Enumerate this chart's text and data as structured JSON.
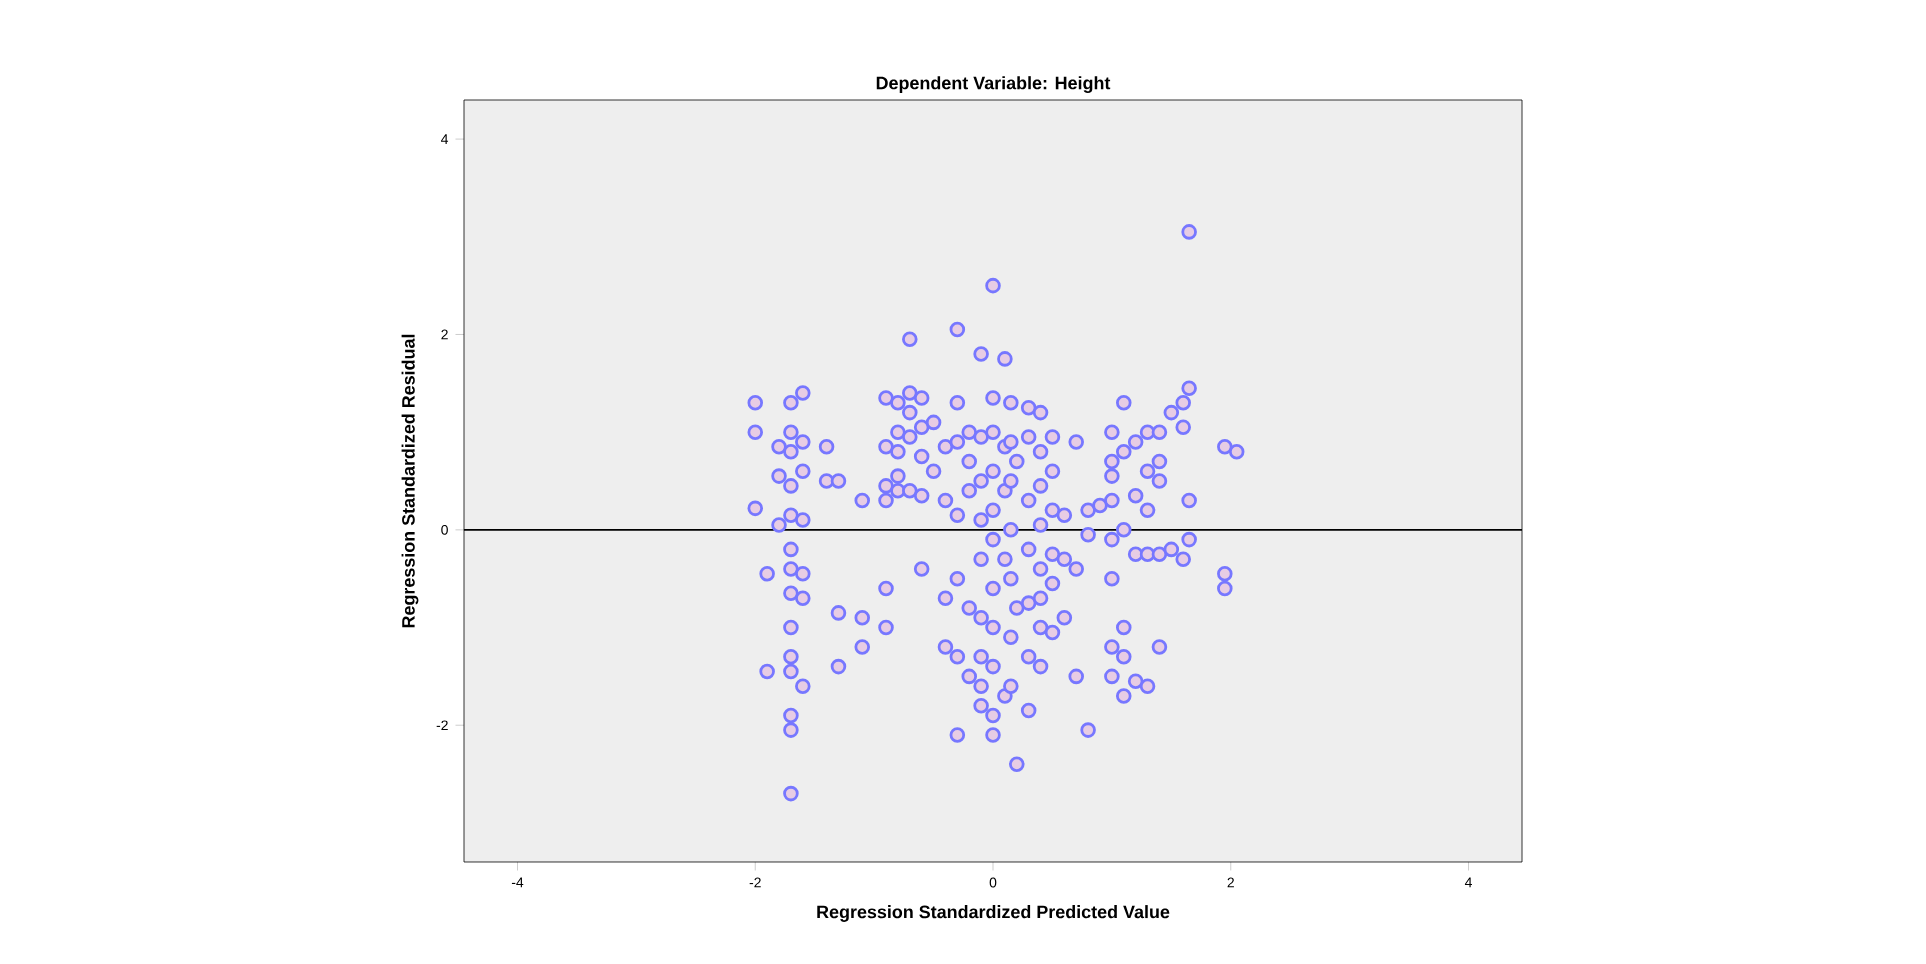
{
  "chart_data": {
    "type": "scatter",
    "title": "Dependent Variable: Height",
    "xlabel": "Regression Standardized Predicted Value",
    "ylabel": "Regression Standardized Residual",
    "xlim": [
      -4.45,
      4.45
    ],
    "ylim": [
      -3.4,
      4.4
    ],
    "xticks": [
      -4,
      -2,
      0,
      2,
      4
    ],
    "yticks": [
      -2,
      0,
      2,
      4
    ],
    "marker": "circle",
    "color": "#7777ff",
    "ref_lines": [
      {
        "axis": "y",
        "value": 0,
        "color": "#000000"
      }
    ],
    "x": [
      -2.0,
      -2.0,
      -2.0,
      -1.9,
      -1.9,
      -1.8,
      -1.8,
      -1.8,
      -1.7,
      -1.7,
      -1.7,
      -1.7,
      -1.7,
      -1.7,
      -1.7,
      -1.7,
      -1.7,
      -1.7,
      -1.7,
      -1.7,
      -1.7,
      -1.7,
      -1.6,
      -1.6,
      -1.6,
      -1.6,
      -1.6,
      -1.6,
      -1.6,
      -1.4,
      -1.4,
      -1.3,
      -1.3,
      -1.3,
      -1.1,
      -1.1,
      -1.1,
      -0.9,
      -0.9,
      -0.9,
      -0.9,
      -0.9,
      -0.9,
      -0.8,
      -0.8,
      -0.8,
      -0.8,
      -0.8,
      -0.7,
      -0.7,
      -0.7,
      -0.7,
      -0.7,
      -0.6,
      -0.6,
      -0.6,
      -0.6,
      -0.6,
      -0.5,
      -0.5,
      -0.4,
      -0.4,
      -0.4,
      -0.4,
      -0.3,
      -0.3,
      -0.3,
      -0.3,
      -0.3,
      -0.3,
      -0.3,
      -0.2,
      -0.2,
      -0.2,
      -0.2,
      -0.2,
      -0.1,
      -0.1,
      -0.1,
      -0.1,
      -0.1,
      -0.1,
      -0.1,
      -0.1,
      -0.1,
      0.0,
      0.0,
      0.0,
      0.0,
      0.0,
      0.0,
      0.0,
      0.0,
      0.0,
      0.0,
      0.0,
      0.1,
      0.1,
      0.1,
      0.1,
      0.1,
      0.15,
      0.15,
      0.15,
      0.15,
      0.15,
      0.15,
      0.15,
      0.2,
      0.2,
      0.2,
      0.3,
      0.3,
      0.3,
      0.3,
      0.3,
      0.3,
      0.3,
      0.4,
      0.4,
      0.4,
      0.4,
      0.4,
      0.4,
      0.4,
      0.4,
      0.5,
      0.5,
      0.5,
      0.5,
      0.5,
      0.5,
      0.6,
      0.6,
      0.6,
      0.7,
      0.7,
      0.7,
      0.8,
      0.8,
      0.8,
      0.9,
      1.0,
      1.0,
      1.0,
      1.0,
      1.0,
      1.0,
      1.0,
      1.0,
      1.1,
      1.1,
      1.1,
      1.1,
      1.1,
      1.1,
      1.2,
      1.2,
      1.2,
      1.2,
      1.3,
      1.3,
      1.3,
      1.3,
      1.3,
      1.4,
      1.4,
      1.4,
      1.4,
      1.4,
      1.5,
      1.5,
      1.6,
      1.6,
      1.6,
      1.65,
      1.65,
      1.65,
      1.65,
      1.95,
      1.95,
      1.95,
      2.05
    ],
    "values": [
      1.3,
      1.0,
      0.22,
      -0.45,
      -1.45,
      0.85,
      0.55,
      0.05,
      1.3,
      1.0,
      0.8,
      0.45,
      0.15,
      -0.2,
      -0.4,
      -0.65,
      -1.0,
      -1.3,
      -1.45,
      -1.9,
      -2.05,
      -2.7,
      1.4,
      0.9,
      0.6,
      0.1,
      -0.45,
      -0.7,
      -1.6,
      0.85,
      0.5,
      0.5,
      -0.85,
      -1.4,
      0.3,
      -0.9,
      -1.2,
      1.35,
      0.85,
      0.45,
      0.3,
      -0.6,
      -1.0,
      1.3,
      1.0,
      0.8,
      0.55,
      0.4,
      1.95,
      1.4,
      1.2,
      0.95,
      0.4,
      1.35,
      1.05,
      0.75,
      0.35,
      -0.4,
      1.1,
      0.6,
      0.85,
      0.3,
      -0.7,
      -1.2,
      2.05,
      1.3,
      0.9,
      0.15,
      -0.5,
      -1.3,
      -2.1,
      1.0,
      0.7,
      0.4,
      -0.8,
      -1.5,
      1.8,
      0.95,
      0.5,
      0.1,
      -0.3,
      -0.9,
      -1.3,
      -1.6,
      -1.8,
      2.5,
      1.35,
      1.0,
      0.6,
      0.2,
      -0.1,
      -0.6,
      -1.0,
      -1.4,
      -1.9,
      -2.1,
      1.75,
      0.85,
      0.4,
      -0.3,
      -1.7,
      1.3,
      0.9,
      0.5,
      0.0,
      -0.5,
      -1.1,
      -1.6,
      -2.4,
      0.7,
      -0.8,
      1.25,
      0.95,
      0.3,
      -0.2,
      -0.75,
      -1.3,
      -1.85,
      1.2,
      0.8,
      0.45,
      0.05,
      -0.4,
      -0.7,
      -1.0,
      -1.4,
      0.95,
      0.6,
      0.2,
      -0.25,
      -0.55,
      -1.05,
      0.15,
      -0.3,
      -0.9,
      0.9,
      -0.4,
      -1.5,
      0.2,
      -0.05,
      -2.05,
      0.25,
      1.0,
      0.7,
      0.55,
      0.3,
      -0.1,
      -0.5,
      -1.2,
      -1.5,
      1.3,
      0.8,
      0.0,
      -1.0,
      -1.3,
      -1.7,
      0.9,
      0.35,
      -0.25,
      -1.55,
      1.0,
      0.6,
      0.2,
      -0.25,
      -1.6,
      1.0,
      0.7,
      0.5,
      -0.25,
      -1.2,
      1.2,
      -0.2,
      1.3,
      1.05,
      -0.3,
      3.05,
      1.45,
      0.3,
      -0.1,
      0.85,
      -0.45,
      -0.6,
      0.8
    ]
  }
}
